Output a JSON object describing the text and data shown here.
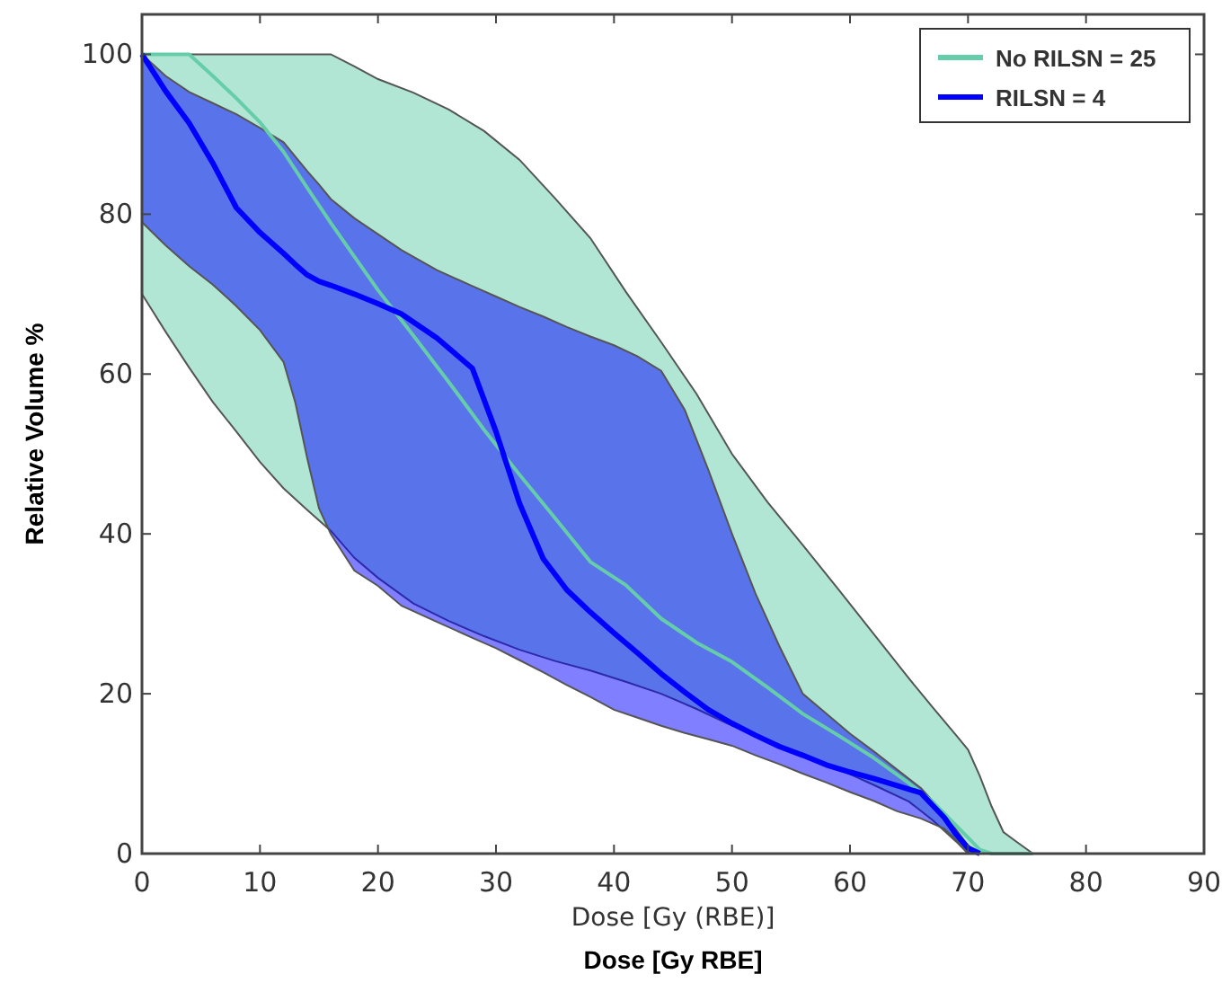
{
  "chart_data": {
    "type": "line",
    "xlabel": "Dose [Gy RBE]",
    "ylabel": "Relative Volume %",
    "annotations": [
      "Dose [Gy (RBE)]"
    ],
    "xlim": [
      0,
      90
    ],
    "ylim": [
      0,
      105
    ],
    "xticks": [
      0,
      10,
      20,
      30,
      40,
      50,
      60,
      70,
      80,
      90
    ],
    "yticks": [
      0,
      20,
      40,
      60,
      80,
      100
    ],
    "legend": "top right",
    "grid": false,
    "series": [
      {
        "name": "No RILSN = 25",
        "color": "#66cdaa",
        "x": [
          0,
          2,
          4,
          6,
          8,
          10,
          12,
          14,
          16,
          18,
          20,
          23,
          26,
          29,
          32,
          35,
          38,
          41,
          44,
          47,
          50,
          53,
          56,
          59,
          62,
          65,
          67,
          69,
          70,
          71,
          72,
          73,
          74,
          75.5
        ],
        "values": [
          100,
          100,
          100,
          97.3,
          94.5,
          91.5,
          87.8,
          83.3,
          78.9,
          74.7,
          70.5,
          64.8,
          59,
          53,
          47.4,
          42,
          36.5,
          33.6,
          29.4,
          26.4,
          24,
          20.8,
          17.5,
          14.8,
          12,
          8.8,
          6.5,
          3.5,
          2,
          0.5,
          0,
          0,
          0,
          0
        ],
        "lower": [
          70,
          65.3,
          60.8,
          56.5,
          52.8,
          49,
          45.7,
          43,
          40.4,
          37,
          34.5,
          31.3,
          29.1,
          27.2,
          25.5,
          24.1,
          22.9,
          21.5,
          20,
          18.1,
          16,
          14.2,
          12.4,
          10.6,
          8.6,
          6.5,
          4.2,
          1.5,
          0,
          0,
          0,
          0,
          0,
          0
        ],
        "upper": [
          100,
          100,
          100,
          100,
          100,
          100,
          100,
          100,
          100,
          98.5,
          96.9,
          95.2,
          93.1,
          90.4,
          86.8,
          82,
          77,
          70.3,
          64,
          57.5,
          50,
          44,
          38.6,
          33.1,
          27.5,
          21.9,
          18.3,
          14.8,
          13,
          9.7,
          5.9,
          2.7,
          1.6,
          0
        ]
      },
      {
        "name": "RILSN = 4",
        "color": "#0000ff",
        "x": [
          0,
          2,
          4,
          6,
          8,
          10,
          12,
          13,
          14,
          15,
          16,
          18,
          20,
          22,
          25,
          28,
          30,
          32,
          34,
          36,
          38,
          40,
          42,
          44,
          46,
          48,
          50,
          52,
          54,
          56,
          58,
          60,
          62,
          64,
          66,
          68,
          69,
          70,
          71
        ],
        "values": [
          100,
          95.4,
          91.4,
          86.4,
          80.8,
          77.7,
          75.1,
          73.7,
          72.4,
          71.6,
          71.1,
          70,
          68.8,
          67.5,
          64.5,
          60.7,
          52.8,
          43.8,
          36.9,
          33,
          30.2,
          27.6,
          25.1,
          22.5,
          20.2,
          18,
          16.3,
          14.8,
          13.4,
          12.3,
          11.1,
          10.2,
          9.4,
          8.5,
          7.6,
          4.5,
          2.4,
          0.7,
          0
        ],
        "lower": [
          79,
          76.1,
          73.5,
          71.2,
          68.5,
          65.5,
          61.5,
          56.4,
          49.5,
          43.2,
          40,
          35.4,
          33.5,
          31,
          29,
          27,
          25.7,
          24.2,
          22.7,
          21.1,
          19.6,
          18,
          17,
          16,
          15.1,
          14.3,
          13.5,
          12.3,
          11.2,
          10,
          8.9,
          7.7,
          6.6,
          5.3,
          4.4,
          3.1,
          1.7,
          0,
          0
        ],
        "upper": [
          100,
          97.3,
          95.3,
          93.9,
          92.5,
          90.8,
          89,
          87.2,
          85.4,
          83.7,
          81.9,
          79.5,
          77.5,
          75.5,
          73,
          71,
          69.7,
          68.4,
          67.2,
          65.9,
          64.7,
          63.6,
          62.2,
          60.4,
          55.5,
          48,
          40,
          32.5,
          26,
          20,
          17.5,
          15,
          12.8,
          10.5,
          8.2,
          5,
          3,
          1,
          0
        ]
      }
    ]
  }
}
